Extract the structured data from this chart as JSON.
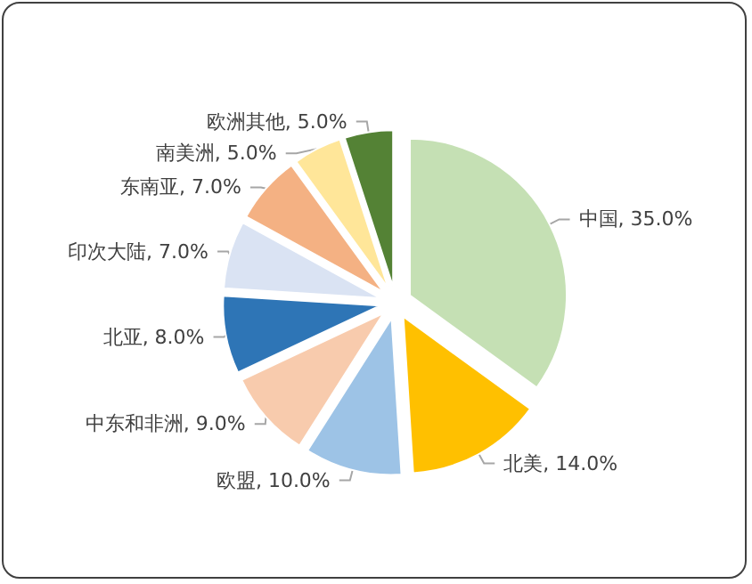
{
  "chart_data": {
    "type": "pie",
    "categories": [
      "中国",
      "北美",
      "欧盟",
      "中东和非洲",
      "北亚",
      "印次大陆",
      "东南亚",
      "南美洲",
      "欧洲其他"
    ],
    "values": [
      35,
      14,
      10,
      9,
      8,
      7,
      7,
      5,
      5
    ],
    "value_labels": [
      "35.0%",
      "14.0%",
      "10.0%",
      "9.0%",
      "8.0%",
      "7.0%",
      "7.0%",
      "5.0%",
      "5.0%"
    ],
    "colors": [
      "#c5e0b4",
      "#ffc000",
      "#9dc3e6",
      "#f8cbad",
      "#2e75b6",
      "#dae3f3",
      "#f4b183",
      "#ffe699",
      "#548235"
    ],
    "legend": false
  }
}
